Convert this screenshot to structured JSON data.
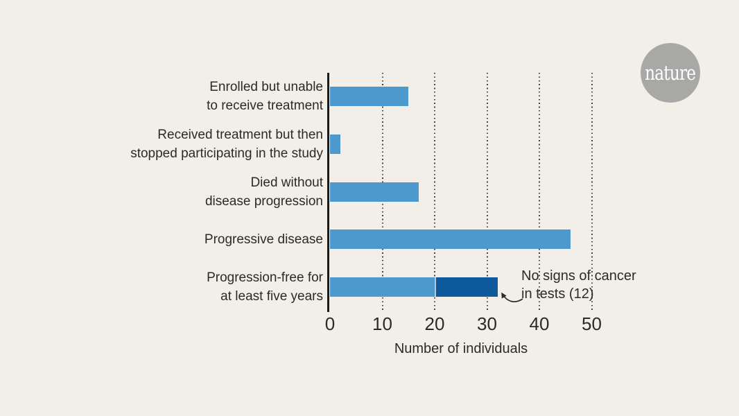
{
  "figure": {
    "background": "#F2EFE8",
    "text_color": "#2B2A26"
  },
  "logo": {
    "text": "nature",
    "circle_color": "#A8A8A6",
    "text_color": "#FFFFFF"
  },
  "chart_data": {
    "type": "bar",
    "orientation": "horizontal",
    "stacked": true,
    "categories": [
      "Enrolled but unable to receive treatment",
      "Received treatment but then stopped participating in the study",
      "Died without disease progression",
      "Progressive disease",
      "Progression-free for at least five years"
    ],
    "category_label_lines": [
      [
        "Enrolled but unable",
        "to receive treatment"
      ],
      [
        "Received treatment but then",
        "stopped participating in the study"
      ],
      [
        "Died without",
        "disease progression"
      ],
      [
        "Progressive disease"
      ],
      [
        "Progression-free for",
        "at least five years"
      ]
    ],
    "series": [
      {
        "name": "Individuals",
        "color": "#4D98CD",
        "values": [
          15,
          2,
          17,
          46,
          20
        ]
      },
      {
        "name": "No signs of cancer in tests",
        "color": "#0E5A9C",
        "values": [
          0,
          0,
          0,
          0,
          12
        ]
      }
    ],
    "bar_totals": [
      15,
      2,
      17,
      46,
      32
    ],
    "xlabel": "Number of individuals",
    "xticks": [
      "0",
      "10",
      "20",
      "30",
      "40",
      "50"
    ],
    "xtick_values": [
      0,
      10,
      20,
      30,
      40,
      50
    ],
    "xlim": [
      0,
      51
    ],
    "grid": {
      "axis": "x",
      "style": "dotted",
      "color": "#45443F"
    },
    "axis_line_color": "#1C1B19",
    "legend": "none",
    "annotation": {
      "lines": [
        "No signs of cancer",
        "in tests (12)"
      ],
      "value": 12,
      "points_to": "dark segment of bottom bar"
    }
  }
}
